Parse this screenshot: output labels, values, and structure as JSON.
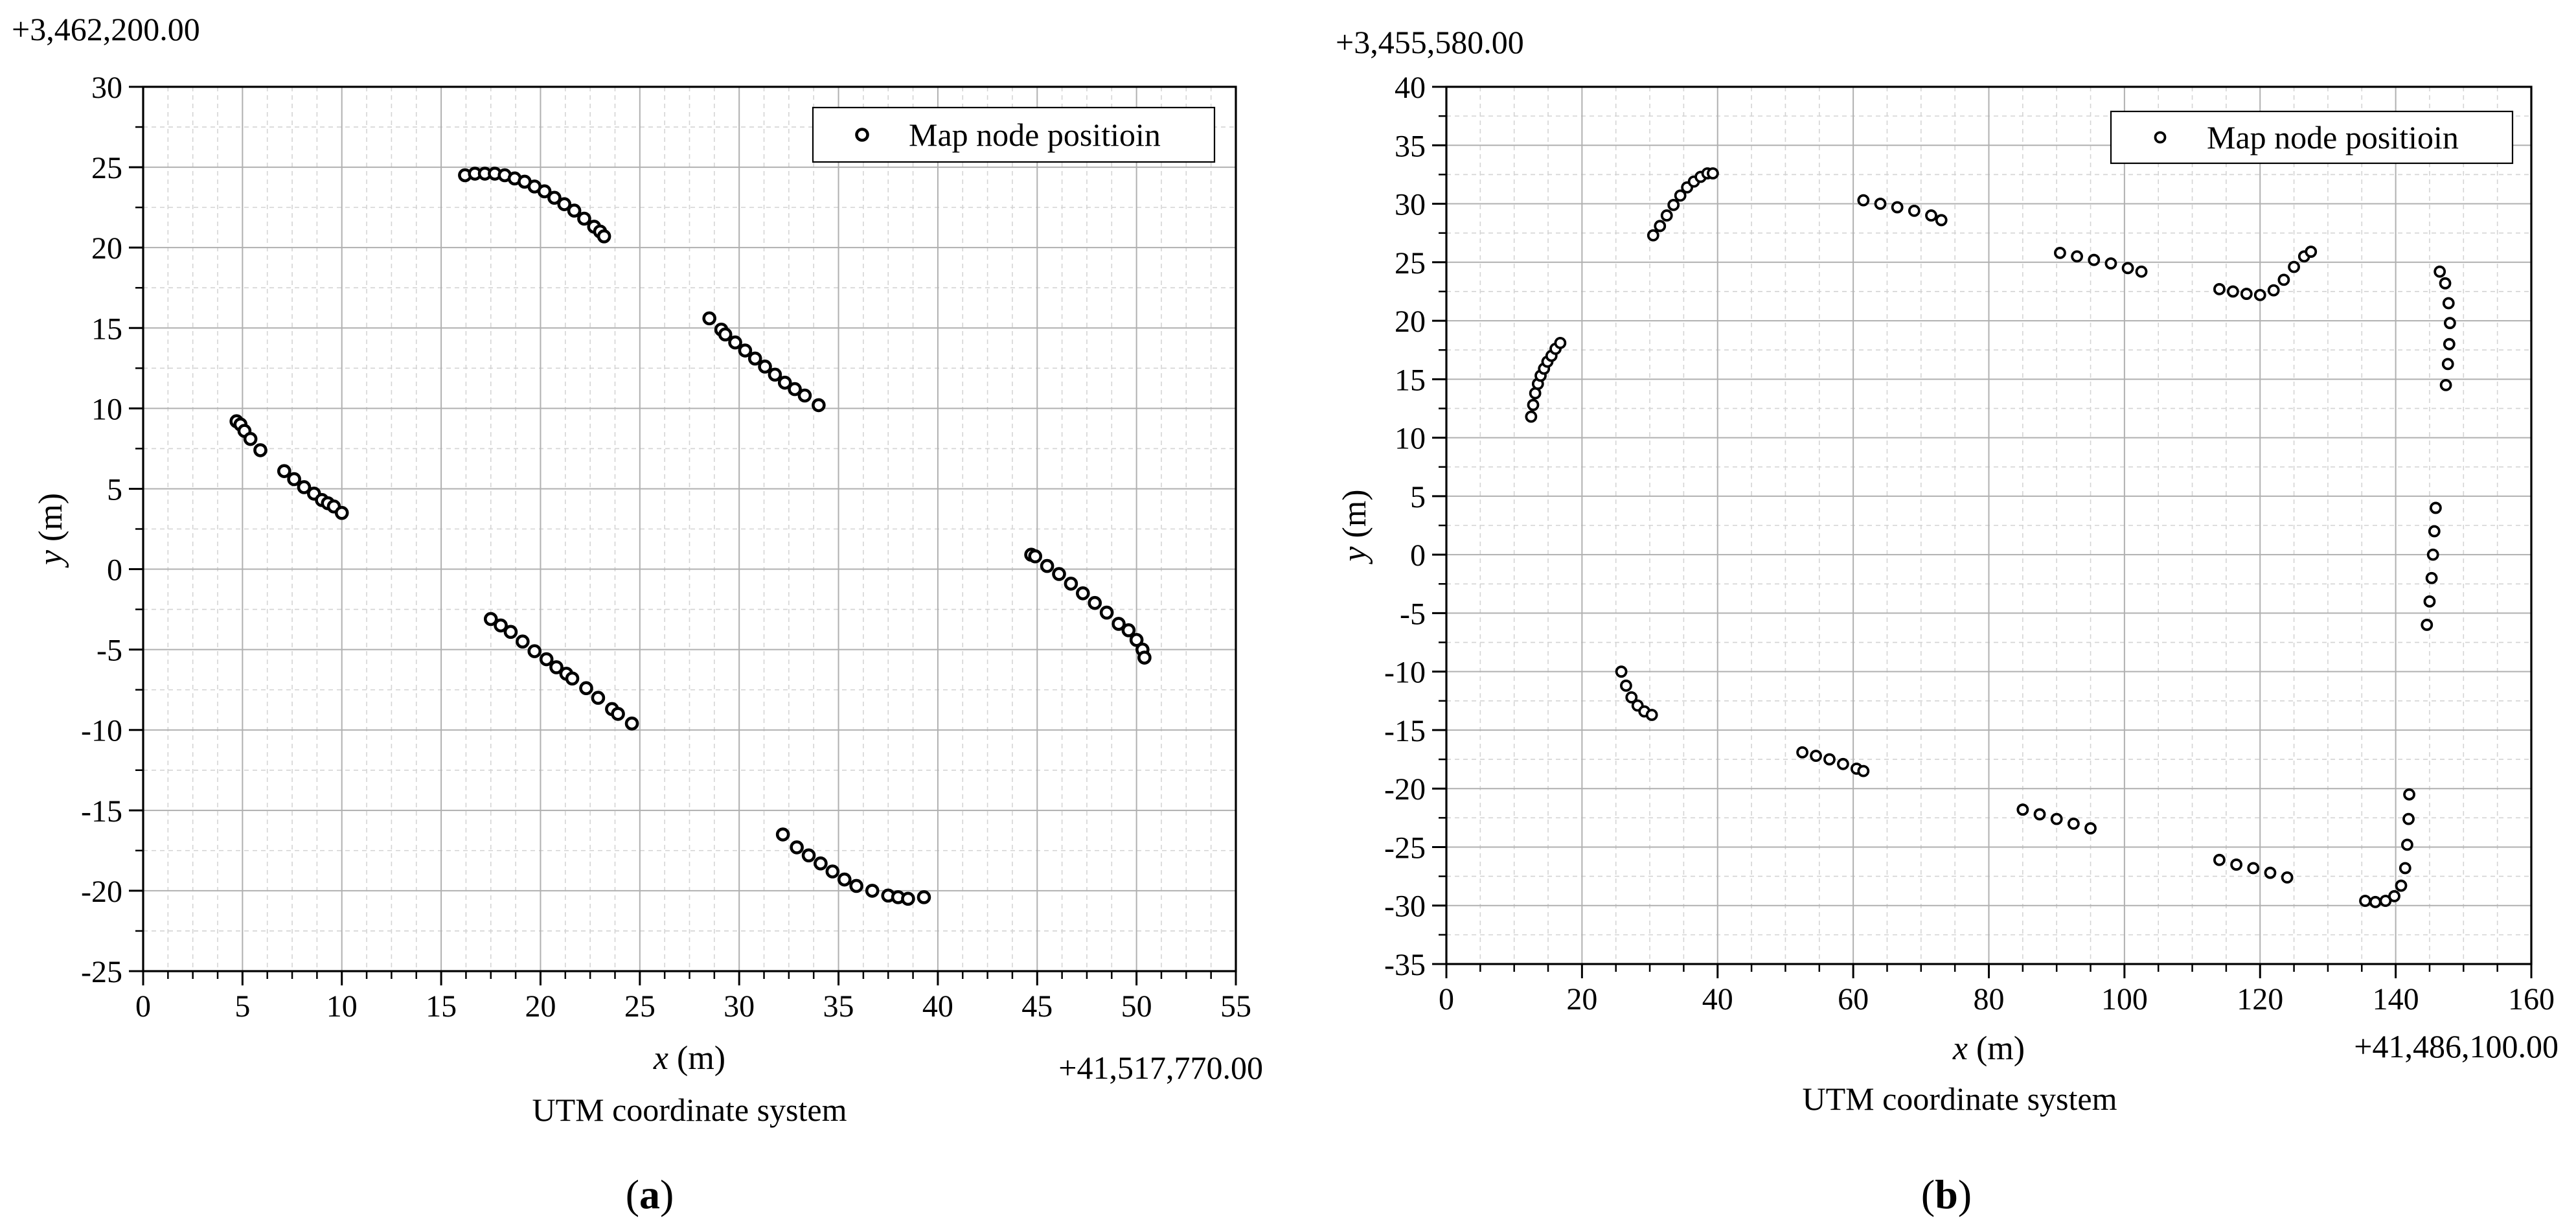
{
  "chart_data": [
    {
      "type": "scatter",
      "panel_label": "(a)",
      "panel_letter": "a",
      "y_offset_label": "+3,462,200.00",
      "x_offset_label": "+41,517,770.00",
      "xlabel": {
        "var": "x",
        "unit": " (m)"
      },
      "ylabel": {
        "var": "y",
        "unit": " (m)"
      },
      "caption": "UTM coordinate system",
      "xlim": [
        0,
        55
      ],
      "ylim": [
        -25,
        30
      ],
      "xticks": [
        0,
        5,
        10,
        15,
        20,
        25,
        30,
        35,
        40,
        45,
        50,
        55
      ],
      "yticks": [
        -25,
        -20,
        -15,
        -10,
        -5,
        0,
        5,
        10,
        15,
        20,
        25,
        30
      ],
      "grid": true,
      "legend_position": "top-right",
      "series": [
        {
          "name": "Map node positioin",
          "marker": "hollow-circle",
          "segments": [
            [
              [
                4.7,
                9.2
              ],
              [
                4.9,
                9.0
              ],
              [
                5.1,
                8.6
              ],
              [
                5.4,
                8.1
              ],
              [
                5.9,
                7.4
              ],
              [
                7.1,
                6.1
              ],
              [
                7.6,
                5.6
              ],
              [
                8.1,
                5.1
              ],
              [
                8.6,
                4.7
              ],
              [
                9.0,
                4.3
              ],
              [
                9.3,
                4.1
              ],
              [
                9.6,
                3.9
              ],
              [
                10.0,
                3.5
              ]
            ],
            [
              [
                16.2,
                24.5
              ],
              [
                16.7,
                24.6
              ],
              [
                17.2,
                24.6
              ],
              [
                17.7,
                24.6
              ],
              [
                18.2,
                24.5
              ],
              [
                18.7,
                24.3
              ],
              [
                19.2,
                24.1
              ],
              [
                19.7,
                23.8
              ],
              [
                20.2,
                23.5
              ],
              [
                20.7,
                23.1
              ],
              [
                21.2,
                22.7
              ],
              [
                21.7,
                22.3
              ],
              [
                22.2,
                21.8
              ],
              [
                22.7,
                21.3
              ],
              [
                23.0,
                21.0
              ],
              [
                23.2,
                20.7
              ]
            ],
            [
              [
                28.5,
                15.6
              ],
              [
                29.1,
                14.9
              ],
              [
                29.3,
                14.6
              ],
              [
                29.8,
                14.1
              ],
              [
                30.3,
                13.6
              ],
              [
                30.8,
                13.1
              ],
              [
                31.3,
                12.6
              ],
              [
                31.8,
                12.1
              ],
              [
                32.3,
                11.6
              ],
              [
                32.8,
                11.2
              ],
              [
                33.3,
                10.8
              ],
              [
                34.0,
                10.2
              ]
            ],
            [
              [
                17.5,
                -3.1
              ],
              [
                18.0,
                -3.5
              ],
              [
                18.5,
                -3.9
              ],
              [
                19.1,
                -4.5
              ],
              [
                19.7,
                -5.1
              ],
              [
                20.3,
                -5.6
              ],
              [
                20.8,
                -6.1
              ],
              [
                21.3,
                -6.5
              ],
              [
                21.6,
                -6.8
              ],
              [
                22.3,
                -7.4
              ],
              [
                22.9,
                -8.0
              ],
              [
                23.6,
                -8.7
              ],
              [
                23.9,
                -9.0
              ],
              [
                24.6,
                -9.6
              ]
            ],
            [
              [
                44.7,
                0.9
              ],
              [
                44.9,
                0.8
              ],
              [
                45.5,
                0.2
              ],
              [
                46.1,
                -0.3
              ],
              [
                46.7,
                -0.9
              ],
              [
                47.3,
                -1.5
              ],
              [
                47.9,
                -2.1
              ],
              [
                48.5,
                -2.7
              ],
              [
                49.1,
                -3.4
              ],
              [
                49.6,
                -3.8
              ],
              [
                50.0,
                -4.4
              ],
              [
                50.3,
                -5.0
              ],
              [
                50.4,
                -5.5
              ]
            ],
            [
              [
                32.2,
                -16.5
              ],
              [
                32.9,
                -17.3
              ],
              [
                33.5,
                -17.8
              ],
              [
                34.1,
                -18.3
              ],
              [
                34.7,
                -18.8
              ],
              [
                35.3,
                -19.3
              ],
              [
                35.9,
                -19.7
              ],
              [
                36.7,
                -20.0
              ],
              [
                37.5,
                -20.3
              ],
              [
                38.0,
                -20.4
              ],
              [
                38.5,
                -20.5
              ],
              [
                39.3,
                -20.4
              ]
            ]
          ]
        }
      ]
    },
    {
      "type": "scatter",
      "panel_label": "(b)",
      "panel_letter": "b",
      "y_offset_label": "+3,455,580.00",
      "x_offset_label": "+41,486,100.00",
      "xlabel": {
        "var": "x",
        "unit": " (m)"
      },
      "ylabel": {
        "var": "y",
        "unit": " (m)"
      },
      "caption": "UTM coordinate system",
      "xlim": [
        0,
        160
      ],
      "ylim": [
        -35,
        40
      ],
      "xticks": [
        0,
        20,
        40,
        60,
        80,
        100,
        120,
        140,
        160
      ],
      "yticks": [
        -35,
        -30,
        -25,
        -20,
        -15,
        -10,
        -5,
        0,
        5,
        10,
        15,
        20,
        25,
        30,
        35,
        40
      ],
      "grid": true,
      "legend_position": "top-right",
      "series": [
        {
          "name": "Map node positioin",
          "marker": "hollow-circle",
          "segments": [
            [
              [
                12.5,
                11.8
              ],
              [
                12.8,
                12.8
              ],
              [
                13.1,
                13.8
              ],
              [
                13.5,
                14.6
              ],
              [
                13.9,
                15.3
              ],
              [
                14.4,
                15.9
              ],
              [
                14.9,
                16.5
              ],
              [
                15.5,
                17.0
              ],
              [
                16.1,
                17.6
              ],
              [
                16.8,
                18.1
              ]
            ],
            [
              [
                30.5,
                27.3
              ],
              [
                31.5,
                28.1
              ],
              [
                32.5,
                29.0
              ],
              [
                33.5,
                29.9
              ],
              [
                34.5,
                30.7
              ],
              [
                35.5,
                31.4
              ],
              [
                36.5,
                31.9
              ],
              [
                37.5,
                32.3
              ],
              [
                38.5,
                32.6
              ],
              [
                39.3,
                32.6
              ]
            ],
            [
              [
                61.5,
                30.3
              ],
              [
                64,
                30.0
              ],
              [
                66.5,
                29.7
              ],
              [
                69,
                29.4
              ],
              [
                71.5,
                29.0
              ],
              [
                73,
                28.6
              ]
            ],
            [
              [
                90.5,
                25.8
              ],
              [
                93,
                25.5
              ],
              [
                95.5,
                25.2
              ],
              [
                98,
                24.9
              ],
              [
                100.5,
                24.5
              ],
              [
                102.5,
                24.2
              ]
            ],
            [
              [
                114,
                22.7
              ],
              [
                116,
                22.5
              ],
              [
                118,
                22.3
              ],
              [
                120,
                22.2
              ],
              [
                122,
                22.6
              ],
              [
                123.5,
                23.5
              ],
              [
                125,
                24.6
              ],
              [
                126.5,
                25.5
              ],
              [
                127.5,
                25.9
              ]
            ],
            [
              [
                146.5,
                24.2
              ],
              [
                147.3,
                23.2
              ],
              [
                147.8,
                21.5
              ],
              [
                148.0,
                19.8
              ],
              [
                147.9,
                18.0
              ],
              [
                147.7,
                16.3
              ],
              [
                147.4,
                14.5
              ]
            ],
            [
              [
                145.9,
                4.0
              ],
              [
                145.7,
                2.0
              ],
              [
                145.5,
                0.0
              ],
              [
                145.3,
                -2.0
              ],
              [
                145.0,
                -4.0
              ],
              [
                144.6,
                -6.0
              ]
            ],
            [
              [
                25.8,
                -10.0
              ],
              [
                26.5,
                -11.2
              ],
              [
                27.3,
                -12.2
              ],
              [
                28.2,
                -12.9
              ],
              [
                29.2,
                -13.4
              ],
              [
                30.3,
                -13.7
              ]
            ],
            [
              [
                52.5,
                -16.9
              ],
              [
                54.5,
                -17.2
              ],
              [
                56.5,
                -17.5
              ],
              [
                58.5,
                -17.9
              ],
              [
                60.5,
                -18.3
              ],
              [
                61.5,
                -18.5
              ]
            ],
            [
              [
                85,
                -21.8
              ],
              [
                87.5,
                -22.2
              ],
              [
                90,
                -22.6
              ],
              [
                92.5,
                -23.0
              ],
              [
                95,
                -23.4
              ]
            ],
            [
              [
                114,
                -26.1
              ],
              [
                116.5,
                -26.5
              ],
              [
                119,
                -26.8
              ],
              [
                121.5,
                -27.2
              ],
              [
                124,
                -27.6
              ]
            ],
            [
              [
                135.5,
                -29.6
              ],
              [
                137,
                -29.7
              ],
              [
                138.5,
                -29.6
              ],
              [
                139.8,
                -29.2
              ],
              [
                140.8,
                -28.3
              ],
              [
                141.4,
                -26.8
              ],
              [
                141.7,
                -24.8
              ],
              [
                141.9,
                -22.6
              ],
              [
                142.0,
                -20.5
              ]
            ]
          ]
        }
      ]
    }
  ]
}
